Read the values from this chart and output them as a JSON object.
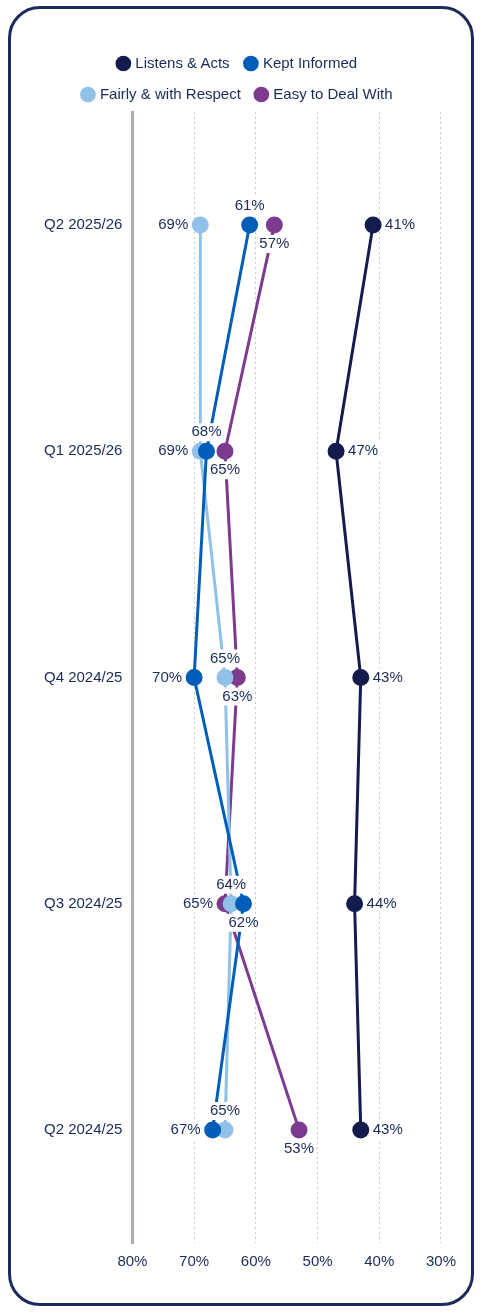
{
  "chart_data": {
    "type": "line",
    "orientation": "horizontal",
    "categories": [
      "Q2 2025/26",
      "Q1 2025/26",
      "Q4 2024/25",
      "Q3 2024/25",
      "Q2 2024/25"
    ],
    "series": [
      {
        "name": "Listens & Acts",
        "color": "#141b4d",
        "values": [
          41,
          47,
          43,
          44,
          43
        ],
        "value_labels": [
          "41%",
          "47%",
          "43%",
          "44%",
          "43%"
        ]
      },
      {
        "name": "Kept Informed",
        "color": "#005eb8",
        "values": [
          61,
          68,
          70,
          62,
          67
        ],
        "value_labels": [
          "61%",
          "68%",
          "70%",
          "62%",
          "67%"
        ]
      },
      {
        "name": "Fairly & with Respect",
        "color": "#8fc1e9",
        "values": [
          69,
          69,
          65,
          64,
          65
        ],
        "value_labels": [
          "69%",
          "69%",
          "65%",
          "64%",
          "65%"
        ]
      },
      {
        "name": "Easy to Deal With",
        "color": "#7c3b8f",
        "values": [
          57,
          65,
          63,
          65,
          53
        ],
        "value_labels": [
          "57%",
          "65%",
          "63%",
          "65%",
          "53%"
        ]
      }
    ],
    "xlim": [
      80,
      30
    ],
    "xticks": [
      {
        "value": 80,
        "label": "80%"
      },
      {
        "value": 70,
        "label": "70%"
      },
      {
        "value": 60,
        "label": "60%"
      },
      {
        "value": 50,
        "label": "50%"
      },
      {
        "value": 40,
        "label": "40%"
      },
      {
        "value": 30,
        "label": "30%"
      }
    ],
    "grid": "x",
    "legend": "top",
    "marker": "circle",
    "line_style": "solid"
  }
}
